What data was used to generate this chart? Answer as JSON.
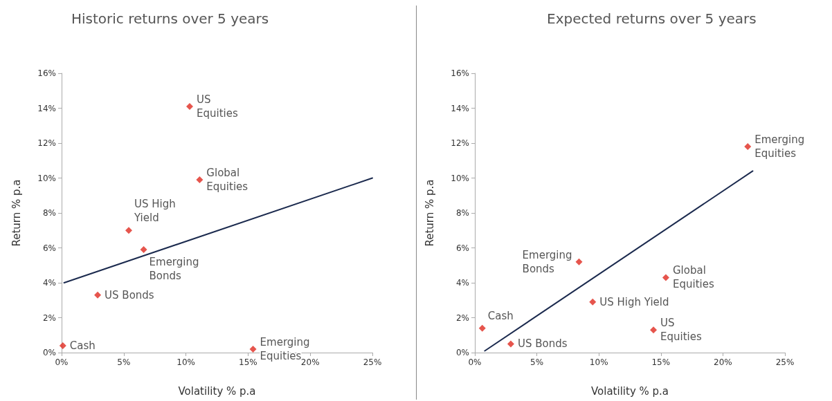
{
  "chart_data": [
    {
      "type": "scatter",
      "title": "Historic returns over 5 years",
      "xlabel": "Volatility % p.a",
      "ylabel": "Return % p.a",
      "xlim": [
        0,
        25
      ],
      "ylim": [
        0,
        16
      ],
      "xticks": [
        {
          "value": 0,
          "label": "0%"
        },
        {
          "value": 5,
          "label": "5%"
        },
        {
          "value": 10,
          "label": "10%"
        },
        {
          "value": 15,
          "label": "15%"
        },
        {
          "value": 20,
          "label": "20%"
        },
        {
          "value": 25,
          "label": "25%"
        }
      ],
      "yticks": [
        {
          "value": 0,
          "label": "0%"
        },
        {
          "value": 2,
          "label": "2%"
        },
        {
          "value": 4,
          "label": "4%"
        },
        {
          "value": 6,
          "label": "6%"
        },
        {
          "value": 8,
          "label": "8%"
        },
        {
          "value": 10,
          "label": "10%"
        },
        {
          "value": 12,
          "label": "12%"
        },
        {
          "value": 14,
          "label": "14%"
        },
        {
          "value": 16,
          "label": "16%"
        }
      ],
      "grid": false,
      "marker": "diamond",
      "series": [
        {
          "color": "#e02b20",
          "x": [
            0.1,
            2.9,
            5.4,
            6.6,
            10.3,
            11.1,
            15.4
          ],
          "values": [
            0.4,
            3.3,
            7.0,
            5.9,
            14.1,
            9.9,
            0.2
          ]
        },
        {
          "type": "line",
          "marker": "none",
          "color": "#1b2a4e",
          "x": [
            0.2,
            25
          ],
          "values": [
            4.0,
            10.0
          ]
        }
      ],
      "annotations": [
        {
          "text": "Cash",
          "x": 0.1,
          "y": 0.4
        },
        {
          "text": "US Bonds",
          "x": 2.9,
          "y": 3.3
        },
        {
          "text": "US High\nYield",
          "x": 5.4,
          "y": 7.0
        },
        {
          "text": "Emerging\nBonds",
          "x": 6.6,
          "y": 5.9
        },
        {
          "text": "US\nEquities",
          "x": 10.3,
          "y": 14.1
        },
        {
          "text": "Global\nEquities",
          "x": 11.1,
          "y": 9.9
        },
        {
          "text": "Emerging\nEquities",
          "x": 15.4,
          "y": 0.2
        }
      ]
    },
    {
      "type": "scatter",
      "title": "Expected returns over 5 years",
      "xlabel": "Volatility % p.a",
      "ylabel": "Return % p.a",
      "xlim": [
        0,
        25
      ],
      "ylim": [
        0,
        16
      ],
      "xticks": [
        {
          "value": 0,
          "label": "0%"
        },
        {
          "value": 5,
          "label": "5%"
        },
        {
          "value": 10,
          "label": "10%"
        },
        {
          "value": 15,
          "label": "15%"
        },
        {
          "value": 20,
          "label": "20%"
        },
        {
          "value": 25,
          "label": "25%"
        }
      ],
      "yticks": [
        {
          "value": 0,
          "label": "0%"
        },
        {
          "value": 2,
          "label": "2%"
        },
        {
          "value": 4,
          "label": "4%"
        },
        {
          "value": 6,
          "label": "6%"
        },
        {
          "value": 8,
          "label": "8%"
        },
        {
          "value": 10,
          "label": "10%"
        },
        {
          "value": 12,
          "label": "12%"
        },
        {
          "value": 14,
          "label": "14%"
        },
        {
          "value": 16,
          "label": "16%"
        }
      ],
      "grid": false,
      "marker": "diamond",
      "series": [
        {
          "color": "#e02b20",
          "x": [
            0.6,
            2.9,
            8.4,
            9.5,
            14.4,
            15.4,
            22.0
          ],
          "values": [
            1.4,
            0.5,
            5.2,
            2.9,
            1.3,
            4.3,
            11.8
          ]
        },
        {
          "type": "line",
          "marker": "none",
          "color": "#1b2a4e",
          "x": [
            0.8,
            22.4
          ],
          "values": [
            0.1,
            10.4
          ]
        }
      ],
      "annotations": [
        {
          "text": "Cash",
          "x": 0.6,
          "y": 1.4
        },
        {
          "text": "US Bonds",
          "x": 2.9,
          "y": 0.5
        },
        {
          "text": "Emerging\nBonds",
          "x": 8.4,
          "y": 5.2
        },
        {
          "text": "US High Yield",
          "x": 9.5,
          "y": 2.9
        },
        {
          "text": "US\nEquities",
          "x": 14.4,
          "y": 1.3
        },
        {
          "text": "Global\nEquities",
          "x": 15.4,
          "y": 4.3
        },
        {
          "text": "Emerging\nEquities",
          "x": 22.0,
          "y": 11.8
        }
      ]
    }
  ]
}
